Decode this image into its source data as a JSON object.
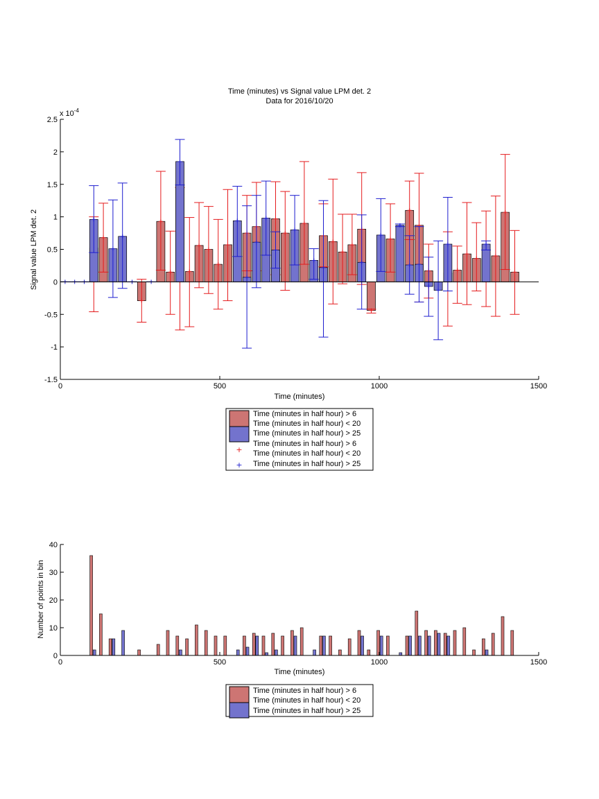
{
  "colors": {
    "red_face": "#cd7573",
    "blue_face": "#7373cd",
    "red_line": "#e41a1c",
    "blue_line": "#1c1ccf",
    "axis": "#000000"
  },
  "top_chart": {
    "title_line1": "Time (minutes) vs Signal value LPM det. 2",
    "title_line2": "Data for 2016/10/20",
    "xlabel": "Time (minutes)",
    "ylabel": "Signal value LPM det. 2",
    "exponent_label": "x 10",
    "exponent_power": "-4",
    "x_ticks": [
      "0",
      "500",
      "1000",
      "1500"
    ],
    "y_ticks": [
      "2.5",
      "2",
      "1.5",
      "1",
      "0.5",
      "0",
      "-0.5",
      "-1",
      "-1.5"
    ],
    "legend": {
      "item1": "Time (minutes in half hour) > 6",
      "item2": "Time (minutes in half hour) < 20",
      "item3": "Time (minutes in half hour) > 25",
      "item4": "Time (minutes in half hour) > 6",
      "item5": "Time (minutes in half hour) < 20",
      "item6": "Time (minutes in half hour) > 25"
    }
  },
  "bottom_chart": {
    "xlabel": "Time (minutes)",
    "ylabel": "Number of points in bin",
    "x_ticks": [
      "0",
      "500",
      "1000",
      "1500"
    ],
    "y_ticks": [
      "40",
      "30",
      "20",
      "10",
      "0"
    ],
    "legend": {
      "item1": "Time (minutes in half hour) > 6",
      "item2": "Time (minutes in half hour) < 20",
      "item3": "Time (minutes in half hour) > 25"
    }
  },
  "chart_data": [
    {
      "type": "bar",
      "title": "Time (minutes) vs Signal value LPM det. 2 / Data for 2016/10/20",
      "xlabel": "Time (minutes)",
      "ylabel": "Signal value LPM det. 2",
      "y_scale_factor": "x 10^-4",
      "xlim": [
        0,
        1500
      ],
      "ylim": [
        -1.5,
        2.5
      ],
      "series": [
        {
          "name": "Time (minutes in half hour) > 6 / Time (minutes in half hour) < 20",
          "color": "red",
          "x": [
            105,
            135,
            255,
            315,
            345,
            375,
            405,
            435,
            465,
            495,
            525,
            585,
            615,
            675,
            705,
            765,
            825,
            855,
            885,
            915,
            945,
            975,
            1035,
            1095,
            1125,
            1155,
            1215,
            1245,
            1275,
            1305,
            1335,
            1365,
            1395,
            1425
          ],
          "values": [
            0.52,
            0.68,
            -0.29,
            0.93,
            0.15,
            1.5,
            0.16,
            0.56,
            0.5,
            0.27,
            0.57,
            0.75,
            0.85,
            0.97,
            0.75,
            0.9,
            0.71,
            0.62,
            0.46,
            0.57,
            0.81,
            -0.44,
            0.66,
            1.1,
            0.87,
            0.17,
            0.14,
            0.18,
            0.43,
            0.36,
            0.36,
            0.4,
            1.07,
            0.15
          ],
          "err_low": [
            -0.46,
            0.15,
            -0.62,
            0.18,
            -0.5,
            -0.74,
            -0.69,
            -0.09,
            -0.18,
            -0.42,
            -0.29,
            0.17,
            0.17,
            0.11,
            -0.13,
            0.27,
            0.23,
            -0.34,
            -0.03,
            0.11,
            -0.04,
            -0.48,
            0.15,
            0.65,
            -0.31,
            -0.25,
            -0.68,
            -0.33,
            -0.35,
            -0.14,
            -0.38,
            -0.53,
            0.19,
            -0.5
          ],
          "err_high": [
            1.0,
            1.21,
            0.04,
            1.7,
            0.78,
            1.45,
            0.99,
            1.22,
            1.16,
            0.96,
            1.42,
            1.33,
            1.53,
            1.54,
            1.39,
            1.85,
            1.2,
            1.58,
            1.04,
            1.04,
            1.68,
            -0.42,
            1.2,
            1.55,
            1.67,
            0.58,
            0.77,
            0.55,
            1.22,
            0.91,
            1.09,
            1.32,
            1.96,
            0.79
          ]
        },
        {
          "name": "Time (minutes in half hour) > 25",
          "color": "blue",
          "x": [
            15,
            45,
            75,
            105,
            165,
            195,
            225,
            285,
            375,
            555,
            585,
            615,
            645,
            675,
            735,
            795,
            825,
            945,
            1005,
            1065,
            1095,
            1125,
            1155,
            1185,
            1215,
            1335
          ],
          "values": [
            0,
            0,
            0,
            0.96,
            0.51,
            0.7,
            0,
            0,
            1.85,
            0.94,
            0.07,
            0.61,
            0.98,
            0.49,
            0.8,
            0.33,
            0.22,
            0.3,
            0.72,
            0.87,
            0.26,
            0.27,
            -0.07,
            -0.13,
            0.58,
            0.58
          ],
          "err_low": [
            0,
            0,
            0,
            0.45,
            -0.24,
            -0.1,
            0,
            0,
            1.49,
            0.39,
            -1.02,
            -0.09,
            0.41,
            0.21,
            0.26,
            0.04,
            -0.85,
            -0.42,
            0.16,
            0.85,
            -0.19,
            -0.31,
            -0.53,
            -0.89,
            -0.14,
            0.49
          ],
          "err_high": [
            0,
            0,
            0,
            1.48,
            1.26,
            1.52,
            0,
            0,
            2.19,
            1.47,
            1.17,
            1.33,
            1.55,
            0.77,
            1.33,
            0.51,
            1.25,
            1.03,
            1.28,
            0.89,
            0.71,
            0.85,
            0.38,
            0.63,
            1.3,
            0.63
          ]
        }
      ]
    },
    {
      "type": "bar",
      "xlabel": "Time (minutes)",
      "ylabel": "Number of points in bin",
      "xlim": [
        0,
        1500
      ],
      "ylim": [
        0,
        40
      ],
      "series": [
        {
          "name": "Time (minutes in half hour) > 6 / Time (minutes in half hour) < 20",
          "color": "red",
          "x": [
            97,
            127,
            157,
            247,
            307,
            337,
            367,
            397,
            427,
            457,
            487,
            517,
            577,
            607,
            637,
            667,
            697,
            727,
            757,
            817,
            847,
            877,
            907,
            937,
            967,
            997,
            1027,
            1087,
            1117,
            1147,
            1177,
            1207,
            1237,
            1267,
            1297,
            1327,
            1357,
            1387,
            1417
          ],
          "values": [
            36,
            15,
            6,
            2,
            4,
            9,
            7,
            6,
            11,
            9,
            7,
            7,
            7,
            8,
            7,
            8,
            7,
            9,
            10,
            7,
            7,
            2,
            6,
            9,
            2,
            9,
            7,
            7,
            16,
            9,
            9,
            8,
            9,
            10,
            2,
            6,
            8,
            14,
            9
          ]
        },
        {
          "name": "Time (minutes in half hour) > 25",
          "color": "blue",
          "x": [
            107,
            167,
            197,
            377,
            557,
            587,
            617,
            647,
            677,
            737,
            797,
            827,
            947,
            1007,
            1067,
            1097,
            1127,
            1157,
            1187,
            1217,
            1337
          ],
          "values": [
            2,
            6,
            9,
            2,
            2,
            3,
            7,
            1,
            2,
            7,
            2,
            7,
            7,
            7,
            1,
            7,
            7,
            7,
            8,
            7,
            2
          ]
        }
      ]
    }
  ]
}
